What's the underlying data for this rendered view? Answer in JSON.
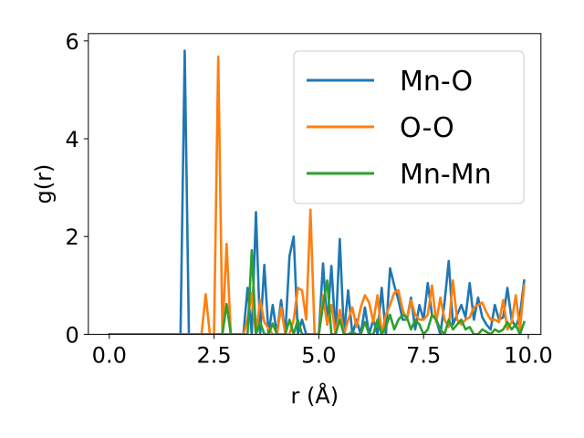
{
  "chart_data": {
    "type": "line",
    "xlabel": "r (Å)",
    "ylabel": "g(r)",
    "xlim": [
      -0.5,
      10.3
    ],
    "ylim": [
      0,
      6.15
    ],
    "xticks": [
      0.0,
      2.5,
      5.0,
      7.5,
      10.0
    ],
    "xtick_labels": [
      "0.0",
      "2.5",
      "5.0",
      "7.5",
      "10.0"
    ],
    "yticks": [
      0,
      2,
      4,
      6
    ],
    "ytick_labels": [
      "0",
      "2",
      "4",
      "6"
    ],
    "grid": false,
    "legend_position": "top-right",
    "series": [
      {
        "name": "Mn-O",
        "color": "#1f77b4",
        "x": [
          0,
          1.7,
          1.8,
          1.9,
          2.0,
          3.2,
          3.3,
          3.4,
          3.5,
          3.6,
          3.7,
          3.8,
          3.9,
          4.0,
          4.1,
          4.2,
          4.3,
          4.4,
          4.5,
          4.6,
          4.7,
          4.8,
          4.9,
          5.0,
          5.1,
          5.2,
          5.3,
          5.4,
          5.5,
          5.6,
          5.7,
          5.8,
          5.9,
          6.0,
          6.1,
          6.2,
          6.3,
          6.4,
          6.5,
          6.6,
          6.7,
          6.8,
          6.9,
          7.0,
          7.1,
          7.2,
          7.3,
          7.4,
          7.5,
          7.6,
          7.7,
          7.8,
          7.9,
          8.0,
          8.1,
          8.2,
          8.3,
          8.4,
          8.5,
          8.6,
          8.7,
          8.8,
          8.9,
          9.0,
          9.1,
          9.2,
          9.3,
          9.4,
          9.5,
          9.6,
          9.7,
          9.8,
          9.9
        ],
        "y": [
          0,
          0,
          5.8,
          0,
          0,
          0,
          0.95,
          0,
          2.5,
          0,
          1.42,
          0,
          0.6,
          0,
          0.7,
          0,
          1.6,
          2.0,
          0,
          0.3,
          0,
          0,
          0,
          0,
          1.45,
          0.2,
          1.4,
          0,
          1.95,
          0,
          0.9,
          0,
          0.3,
          0,
          0.55,
          0,
          0.3,
          0,
          0.95,
          0,
          1.35,
          1.0,
          0.7,
          0.3,
          0.3,
          0.75,
          0.1,
          0.6,
          0.3,
          1.05,
          0.4,
          0.3,
          0,
          0.65,
          1.5,
          0.2,
          0.4,
          0.6,
          0.35,
          1.05,
          0.3,
          0.75,
          0.35,
          0.2,
          0.1,
          0.6,
          0.3,
          0.35,
          0.95,
          0.3,
          0.15,
          0.4,
          1.1
        ]
      },
      {
        "name": "O-O",
        "color": "#ff7f0e",
        "x": [
          0,
          2.1,
          2.2,
          2.3,
          2.4,
          2.5,
          2.6,
          2.7,
          2.8,
          2.9,
          3.0,
          3.1,
          3.2,
          3.3,
          3.4,
          3.5,
          3.6,
          3.7,
          3.8,
          3.9,
          4.0,
          4.1,
          4.2,
          4.3,
          4.4,
          4.5,
          4.6,
          4.7,
          4.8,
          4.9,
          5.0,
          5.1,
          5.2,
          5.3,
          5.4,
          5.5,
          5.6,
          5.7,
          5.8,
          5.9,
          6.0,
          6.1,
          6.2,
          6.3,
          6.4,
          6.5,
          6.6,
          6.7,
          6.8,
          6.9,
          7.0,
          7.1,
          7.2,
          7.3,
          7.4,
          7.5,
          7.6,
          7.7,
          7.8,
          7.9,
          8.0,
          8.1,
          8.2,
          8.3,
          8.4,
          8.5,
          8.6,
          8.7,
          8.8,
          8.9,
          9.0,
          9.1,
          9.2,
          9.3,
          9.4,
          9.5,
          9.6,
          9.7,
          9.8,
          9.9
        ],
        "y": [
          0,
          0,
          0,
          0.82,
          0,
          0,
          5.68,
          0,
          1.85,
          0,
          0,
          0,
          0,
          0.3,
          0.85,
          0,
          0.7,
          0.25,
          0.12,
          0,
          0,
          0.55,
          0,
          0,
          0.3,
          0.95,
          0.9,
          0.3,
          2.55,
          0,
          0,
          0.8,
          0.2,
          0.6,
          0,
          0.5,
          0,
          0.3,
          0.55,
          0.15,
          0.55,
          0.8,
          0.65,
          0.25,
          0.8,
          0,
          0.4,
          0.6,
          0.85,
          0.9,
          0.5,
          0.3,
          0.7,
          0.4,
          0.3,
          0.3,
          0.4,
          1.0,
          0.25,
          0.75,
          0.3,
          0.15,
          1.1,
          0.3,
          0.2,
          0.3,
          0.35,
          0.55,
          0.6,
          0.65,
          0.45,
          0.3,
          0.3,
          0.25,
          0.7,
          0.1,
          0.25,
          0.8,
          0.1,
          1.0
        ]
      },
      {
        "name": "Mn-Mn",
        "color": "#2ca02c",
        "x": [
          0,
          2.6,
          2.7,
          2.8,
          2.9,
          3.3,
          3.4,
          3.5,
          3.6,
          3.7,
          3.8,
          3.9,
          4.0,
          4.1,
          4.2,
          4.3,
          4.4,
          4.5,
          4.6,
          5.0,
          5.1,
          5.2,
          5.3,
          5.4,
          5.5,
          5.6,
          5.7,
          5.8,
          5.9,
          6.0,
          6.1,
          6.2,
          6.3,
          6.4,
          6.5,
          6.6,
          6.7,
          6.8,
          6.9,
          7.0,
          7.1,
          7.2,
          7.3,
          7.4,
          7.5,
          7.6,
          7.7,
          7.8,
          7.9,
          8.0,
          8.1,
          8.2,
          8.3,
          8.4,
          8.5,
          8.6,
          8.7,
          8.8,
          8.9,
          9.0,
          9.1,
          9.2,
          9.3,
          9.4,
          9.5,
          9.6,
          9.7,
          9.8,
          9.9
        ],
        "y": [
          0,
          0,
          0,
          0.62,
          0,
          0,
          1.72,
          0,
          0.25,
          0,
          0,
          0.22,
          0,
          0,
          0,
          0.3,
          0,
          0.3,
          0,
          0,
          0.6,
          1.1,
          0,
          0,
          0.3,
          0,
          0,
          0.05,
          0,
          0,
          0.25,
          0,
          0,
          0.3,
          0,
          0.15,
          0.4,
          0.1,
          0.3,
          0.4,
          0.35,
          0.1,
          0.3,
          0.2,
          0,
          0.1,
          0.4,
          0.3,
          0.1,
          0,
          0.3,
          0.1,
          0.2,
          0.3,
          0.1,
          0.15,
          0,
          0,
          0.1,
          0.05,
          0,
          0.1,
          0.05,
          0.1,
          0.25,
          0.1,
          0.2,
          0,
          0.25
        ]
      }
    ]
  }
}
